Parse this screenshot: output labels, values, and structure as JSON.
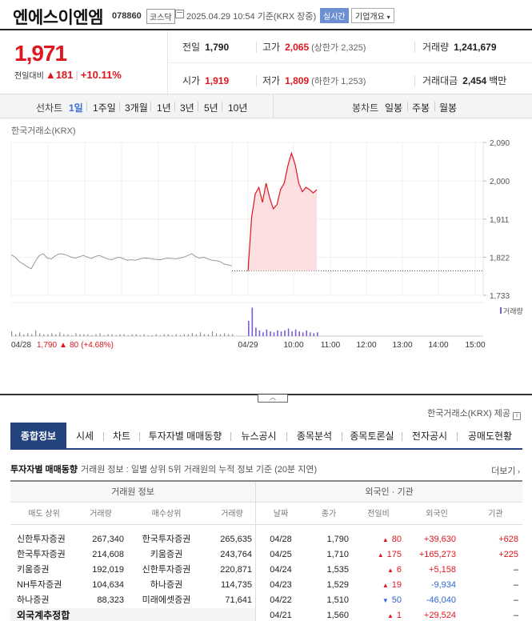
{
  "stock": {
    "name": "엔에스이엔엠",
    "code": "078860",
    "market": "코스닥",
    "datetime": "2025.04.29 10:54 기준(KRX 장중)",
    "realtime_label": "실시간",
    "company_info_label": "기업개요"
  },
  "quote": {
    "price": "1,971",
    "change_label": "전일대비",
    "change_arrow": "▲",
    "change": "181",
    "change_pct": "+10.11%",
    "prev_close": {
      "label": "전일",
      "value": "1,790"
    },
    "high": {
      "label": "고가",
      "value": "2,065",
      "sub": "(상한가 2,325)"
    },
    "volume": {
      "label": "거래량",
      "value": "1,241,679"
    },
    "open": {
      "label": "시가",
      "value": "1,919"
    },
    "low": {
      "label": "저가",
      "value": "1,809",
      "sub": "(하한가 1,253)"
    },
    "amount": {
      "label": "거래대금",
      "value": "2,454",
      "unit": "백만"
    }
  },
  "periods": {
    "line_label": "선차트",
    "line_items": [
      "1일",
      "1주일",
      "3개월",
      "1년",
      "3년",
      "5년",
      "10년"
    ],
    "selected": "1일",
    "candle_label": "봉차트",
    "candle_items": [
      "일봉",
      "주봉",
      "월봉"
    ]
  },
  "chart_data": {
    "type": "line",
    "source_label": "한국거래소(KRX)",
    "y_ticks": [
      "2,090",
      "2,000",
      "1,911",
      "1,822",
      "1,733"
    ],
    "y_range": [
      1733,
      2090
    ],
    "prev_close": 1790,
    "volume_label": "거래량",
    "prev_day_label": "04/28",
    "prev_day_close": "1,790",
    "prev_day_arrow": "▲",
    "prev_day_change": "80",
    "prev_day_pct": "(+4.68%)",
    "x_labels": [
      "04/29",
      "10:00",
      "11:00",
      "12:00",
      "13:00",
      "14:00",
      "15:00"
    ],
    "prev_day_series": [
      1828,
      1822,
      1812,
      1806,
      1800,
      1795,
      1812,
      1826,
      1830,
      1820,
      1818,
      1825,
      1830,
      1829,
      1826,
      1822,
      1820,
      1823,
      1826,
      1822,
      1819,
      1824,
      1826,
      1822,
      1818,
      1816,
      1820,
      1822,
      1818,
      1815,
      1816,
      1815,
      1818,
      1820,
      1820,
      1818,
      1817,
      1816,
      1818,
      1820,
      1819,
      1818,
      1820,
      1822,
      1826,
      1830,
      1823,
      1820,
      1822,
      1818,
      1815,
      1814,
      1812,
      1806,
      1804,
      1802
    ],
    "today_series": [
      1790,
      1915,
      1970,
      1985,
      1950,
      1995,
      1960,
      1935,
      1945,
      1980,
      1995,
      2035,
      2065,
      2040,
      1995,
      1975,
      1985,
      1980,
      1972,
      1980
    ],
    "prev_day_volume": [
      5,
      2,
      4,
      2,
      3,
      2,
      6,
      3,
      2,
      2,
      3,
      2,
      4,
      2,
      2,
      1,
      3,
      2,
      2,
      2,
      1,
      2,
      3,
      1,
      2,
      2,
      1,
      2,
      2,
      1,
      2,
      2,
      1,
      2,
      1,
      1,
      2,
      1,
      2,
      2,
      1,
      2,
      1,
      2,
      2,
      3,
      2,
      4,
      2,
      2,
      5,
      3,
      2,
      3,
      2,
      2
    ],
    "today_volume": [
      16,
      30,
      9,
      6,
      4,
      7,
      5,
      4,
      6,
      5,
      6,
      8,
      5,
      7,
      5,
      4,
      6,
      4,
      3,
      4
    ]
  },
  "source_note": "한국거래소(KRX) 제공",
  "tabs": [
    "종합정보",
    "시세",
    "차트",
    "투자자별 매매동향",
    "뉴스공시",
    "종목분석",
    "종목토론실",
    "전자공시",
    "공매도현황"
  ],
  "selected_tab": "종합정보",
  "investor": {
    "title": "투자자별 매매동향",
    "desc": "거래원 정보 : 일별 상위 5위 거래원의 누적 정보 기준 (20분 지연)",
    "more": "더보기",
    "left_group": "거래원 정보",
    "right_group": "외국인 · 기관",
    "left_headers": [
      "매도 상위",
      "거래량",
      "매수상위",
      "거래량"
    ],
    "right_headers": [
      "날짜",
      "종가",
      "전일비",
      "외국인",
      "기관"
    ],
    "brokers": [
      {
        "sell": "신한투자증권",
        "sell_vol": "267,340",
        "buy": "한국투자증권",
        "buy_vol": "265,635"
      },
      {
        "sell": "한국투자증권",
        "sell_vol": "214,608",
        "buy": "키움증권",
        "buy_vol": "243,764"
      },
      {
        "sell": "키움증권",
        "sell_vol": "192,019",
        "buy": "신한투자증권",
        "buy_vol": "220,871"
      },
      {
        "sell": "NH투자증권",
        "sell_vol": "104,634",
        "buy": "하나증권",
        "buy_vol": "114,735"
      },
      {
        "sell": "하나증권",
        "sell_vol": "88,323",
        "buy": "미래에셋증권",
        "buy_vol": "71,641"
      }
    ],
    "foreign_total": "외국계추정합",
    "flows": [
      {
        "date": "04/28",
        "close": "1,790",
        "dir": "up",
        "arrow": "▲",
        "diff": "80",
        "foreign": "+39,630",
        "inst": "+628"
      },
      {
        "date": "04/25",
        "close": "1,710",
        "dir": "up",
        "arrow": "▲",
        "diff": "175",
        "foreign": "+165,273",
        "inst": "+225"
      },
      {
        "date": "04/24",
        "close": "1,535",
        "dir": "up",
        "arrow": "▲",
        "diff": "6",
        "foreign": "+5,158",
        "inst": "–"
      },
      {
        "date": "04/23",
        "close": "1,529",
        "dir": "up",
        "arrow": "▲",
        "diff": "19",
        "foreign": "-9,934",
        "inst": "–"
      },
      {
        "date": "04/22",
        "close": "1,510",
        "dir": "dn",
        "arrow": "▼",
        "diff": "50",
        "foreign": "-46,040",
        "inst": "–"
      },
      {
        "date": "04/21",
        "close": "1,560",
        "dir": "up",
        "arrow": "▲",
        "diff": "1",
        "foreign": "+29,524",
        "inst": "–"
      }
    ]
  }
}
